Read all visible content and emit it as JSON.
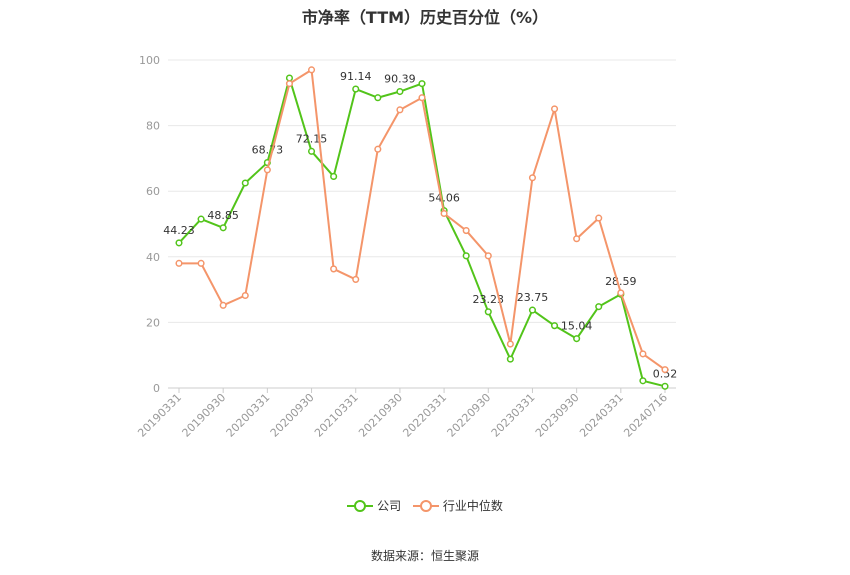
{
  "chart_data": {
    "type": "line",
    "title": "市净率（TTM）历史百分位（%）",
    "ylim": [
      0,
      100
    ],
    "yticks": [
      0,
      20,
      40,
      60,
      80,
      100
    ],
    "categories": [
      "20190331",
      "",
      "20190930",
      "",
      "20200331",
      "",
      "20200930",
      "",
      "20210331",
      "",
      "20210930",
      "",
      "20220331",
      "",
      "20220930",
      "",
      "20230331",
      "",
      "20230930",
      "",
      "20240331",
      "",
      "20240716"
    ],
    "xtick_labels": [
      "20190331",
      "20190930",
      "20200331",
      "20200930",
      "20210331",
      "20210930",
      "20220331",
      "20220930",
      "20230331",
      "20230930",
      "20240331",
      "20240716"
    ],
    "series": [
      {
        "name": "公司",
        "color": "#52c41a",
        "values": [
          44.23,
          51.5,
          48.85,
          62.5,
          68.73,
          94.5,
          72.15,
          64.5,
          91.14,
          88.5,
          90.39,
          92.8,
          54.06,
          40.3,
          23.23,
          8.8,
          23.75,
          19.0,
          15.04,
          24.8,
          28.59,
          2.2,
          0.52
        ],
        "labels": {
          "0": "44.23",
          "2": "48.85",
          "4": "68.73",
          "6": "72.15",
          "8": "91.14",
          "10": "90.39",
          "12": "54.06",
          "14": "23.23",
          "16": "23.75",
          "18": "15.04",
          "20": "28.59",
          "22": "0.52"
        }
      },
      {
        "name": "行业中位数",
        "color": "#f4956a",
        "values": [
          38.0,
          38.0,
          25.2,
          28.2,
          66.5,
          92.8,
          97.0,
          36.3,
          33.1,
          72.8,
          84.8,
          88.5,
          53.2,
          48.0,
          40.3,
          13.4,
          64.1,
          85.1,
          45.5,
          51.8,
          29.0,
          10.4,
          5.6
        ]
      }
    ],
    "grid": true,
    "legend_position": "bottom"
  },
  "legend": {
    "company": "公司",
    "industry": "行业中位数"
  },
  "source": "数据来源：恒生聚源"
}
